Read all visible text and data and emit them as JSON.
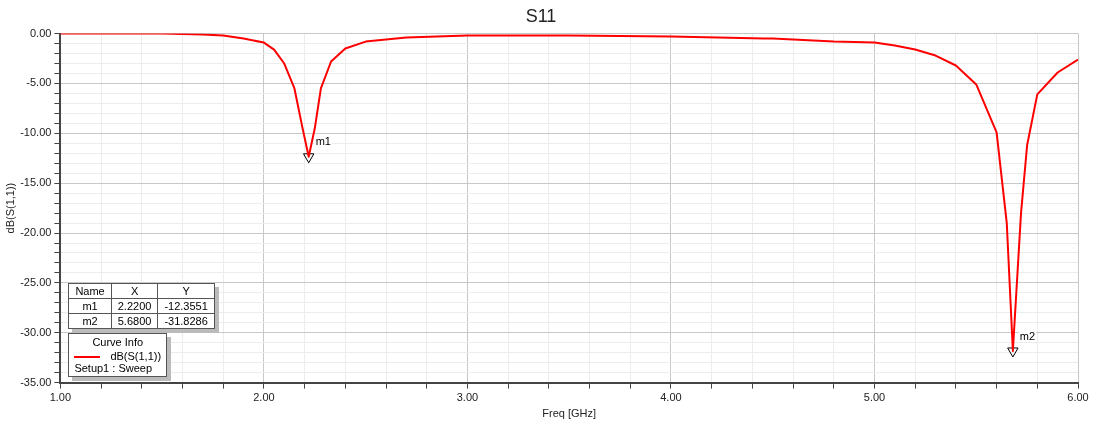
{
  "chart_data": {
    "type": "line",
    "title": "S11",
    "xlabel": "Freq [GHz]",
    "ylabel": "dB(S(1,1))",
    "legend_title": "Curve Info",
    "legend": "bottom left",
    "grid": true,
    "marker": "none",
    "line_style": "solid",
    "xlim": [
      1,
      6
    ],
    "ylim": [
      -35,
      0
    ],
    "xticks": [
      {
        "value": 1,
        "label": "1.00"
      },
      {
        "value": 1.2,
        "label": null
      },
      {
        "value": 1.4,
        "label": null
      },
      {
        "value": 1.6,
        "label": null
      },
      {
        "value": 1.8,
        "label": null
      },
      {
        "value": 2,
        "label": "2.00"
      },
      {
        "value": 2.2,
        "label": null
      },
      {
        "value": 2.4,
        "label": null
      },
      {
        "value": 2.6,
        "label": null
      },
      {
        "value": 2.8,
        "label": null
      },
      {
        "value": 3,
        "label": "3.00"
      },
      {
        "value": 3.2,
        "label": null
      },
      {
        "value": 3.4,
        "label": null
      },
      {
        "value": 3.6,
        "label": null
      },
      {
        "value": 3.8,
        "label": null
      },
      {
        "value": 4,
        "label": "4.00"
      },
      {
        "value": 4.2,
        "label": null
      },
      {
        "value": 4.4,
        "label": null
      },
      {
        "value": 4.6,
        "label": null
      },
      {
        "value": 4.8,
        "label": null
      },
      {
        "value": 5,
        "label": "5.00"
      },
      {
        "value": 5.2,
        "label": null
      },
      {
        "value": 5.4,
        "label": null
      },
      {
        "value": 5.6,
        "label": null
      },
      {
        "value": 5.8,
        "label": null
      },
      {
        "value": 6,
        "label": "6.00"
      }
    ],
    "yticks": [
      {
        "value": 0,
        "label": "0.00"
      },
      {
        "value": -1,
        "label": null
      },
      {
        "value": -2,
        "label": null
      },
      {
        "value": -3,
        "label": null
      },
      {
        "value": -4,
        "label": null
      },
      {
        "value": -5,
        "label": "-5.00"
      },
      {
        "value": -6,
        "label": null
      },
      {
        "value": -7,
        "label": null
      },
      {
        "value": -8,
        "label": null
      },
      {
        "value": -9,
        "label": null
      },
      {
        "value": -10,
        "label": "-10.00"
      },
      {
        "value": -11,
        "label": null
      },
      {
        "value": -12,
        "label": null
      },
      {
        "value": -13,
        "label": null
      },
      {
        "value": -14,
        "label": null
      },
      {
        "value": -15,
        "label": "-15.00"
      },
      {
        "value": -16,
        "label": null
      },
      {
        "value": -17,
        "label": null
      },
      {
        "value": -18,
        "label": null
      },
      {
        "value": -19,
        "label": null
      },
      {
        "value": -20,
        "label": "-20.00"
      },
      {
        "value": -21,
        "label": null
      },
      {
        "value": -22,
        "label": null
      },
      {
        "value": -23,
        "label": null
      },
      {
        "value": -24,
        "label": null
      },
      {
        "value": -25,
        "label": "-25.00"
      },
      {
        "value": -26,
        "label": null
      },
      {
        "value": -27,
        "label": null
      },
      {
        "value": -28,
        "label": null
      },
      {
        "value": -29,
        "label": null
      },
      {
        "value": -30,
        "label": "-30.00"
      },
      {
        "value": -31,
        "label": null
      },
      {
        "value": -32,
        "label": null
      },
      {
        "value": -33,
        "label": null
      },
      {
        "value": -34,
        "label": null
      },
      {
        "value": -35,
        "label": "-35.00"
      }
    ],
    "x": [
      1,
      1.5,
      1.7,
      1.8,
      1.9,
      2,
      2.05,
      2.1,
      2.15,
      2.19,
      2.22,
      2.25,
      2.28,
      2.33,
      2.4,
      2.5,
      2.7,
      3,
      3.5,
      4,
      4.5,
      4.8,
      5,
      5.1,
      5.2,
      5.3,
      5.4,
      5.5,
      5.6,
      5.65,
      5.68,
      5.72,
      5.75,
      5.8,
      5.9,
      6
    ],
    "series": [
      {
        "name": "dB(S(1,1))",
        "color": "#ff0000",
        "values": [
          0,
          0,
          -0.1,
          -0.2,
          -0.5,
          -0.9,
          -1.6,
          -3,
          -5.5,
          -9.5,
          -12.3551,
          -9.5,
          -5.5,
          -2.8,
          -1.5,
          -0.8,
          -0.4,
          -0.2,
          -0.2,
          -0.3,
          -0.5,
          -0.8,
          -0.9,
          -1.2,
          -1.6,
          -2.2,
          -3.2,
          -5.1,
          -9.9,
          -19,
          -31.8286,
          -18,
          -11.2,
          -6.1,
          -3.9,
          -2.6
        ]
      },
      {
        "type": "scatter",
        "marker": "triangle",
        "color": "#000000",
        "x": [
          2.22,
          5.68
        ],
        "values": [
          -12.3551,
          -31.8286
        ]
      }
    ],
    "annotations": [
      "Name",
      "X",
      "Y",
      "m1",
      "2.2200",
      "-12.3551",
      "m2",
      "5.6800",
      "-31.8286",
      "Setup1 : Sweep",
      {
        "text": "m1",
        "x": 2.22,
        "y": -12.3551
      },
      {
        "text": "m2",
        "x": 5.68,
        "y": -31.8286
      }
    ]
  }
}
